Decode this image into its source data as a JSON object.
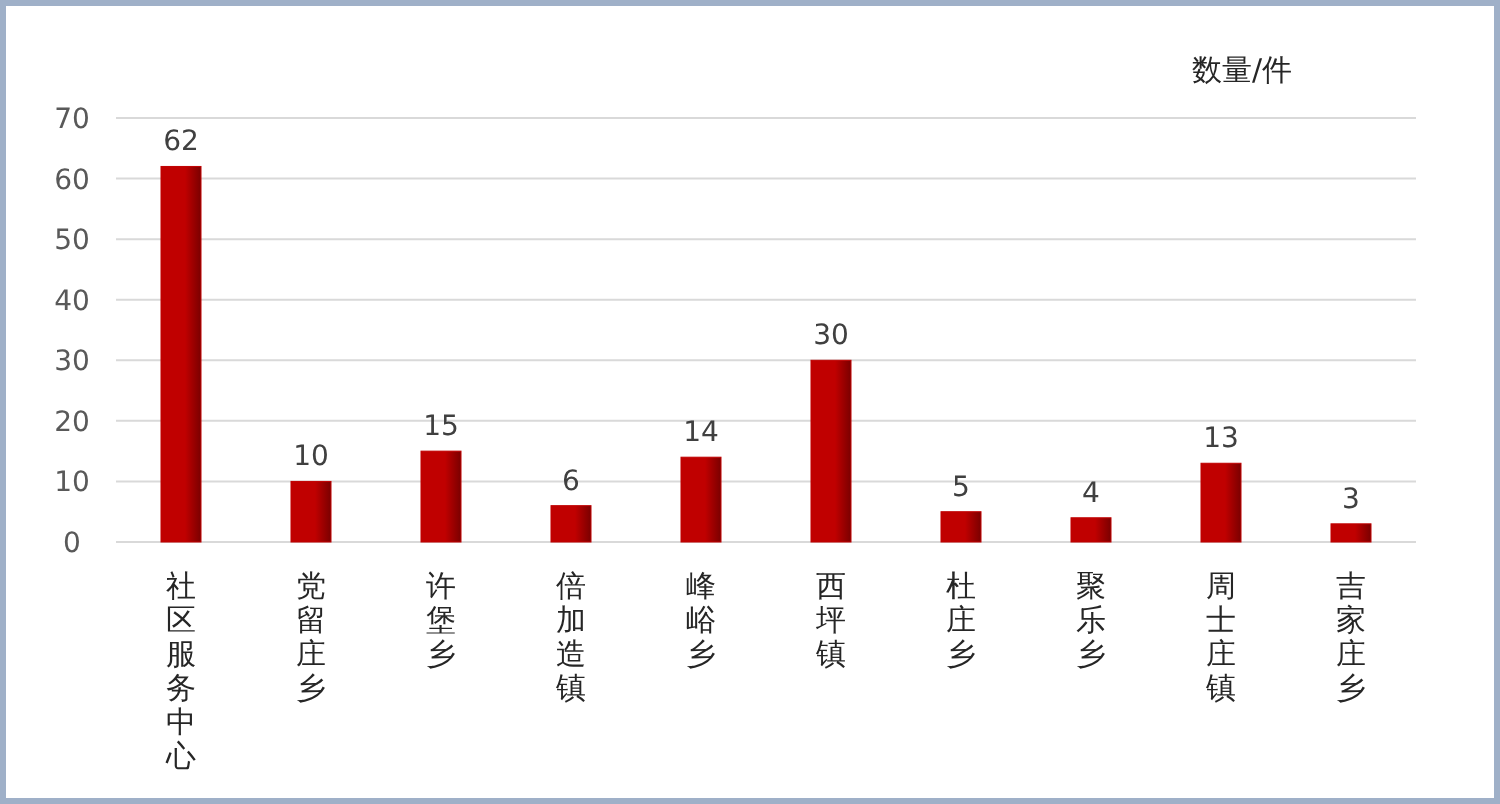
{
  "chart_data": {
    "type": "bar",
    "ylabel": "数量/件",
    "categories": [
      "社区服务中心",
      "党留庄乡",
      "许堡乡",
      "倍加造镇",
      "峰峪乡",
      "西坪镇",
      "杜庄乡",
      "聚乐乡",
      "周士庄镇",
      "吉家庄乡"
    ],
    "values": [
      62,
      10,
      15,
      6,
      14,
      30,
      5,
      4,
      13,
      3
    ],
    "color": "#c00000",
    "ylim": [
      0,
      70
    ],
    "yticks": [
      0,
      10,
      20,
      30,
      40,
      50,
      60,
      70
    ],
    "grid": "y",
    "data_labels": true
  }
}
